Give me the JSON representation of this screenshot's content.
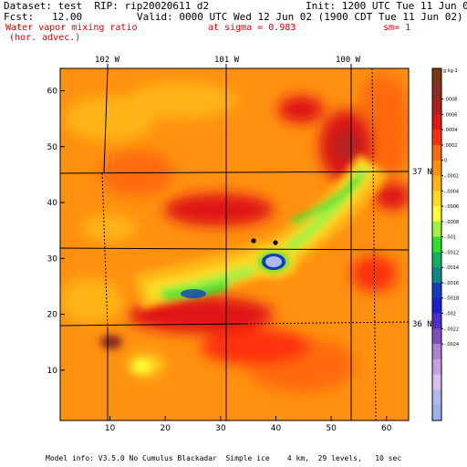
{
  "header": {
    "dataset": "Dataset: test  RIP: rip20020611 d2",
    "init": "Init: 1200 UTC Tue 11 Jun 02",
    "fcst": "Fcst:   12.00",
    "valid": "Valid: 0000 UTC Wed 12 Jun 02 (1900 CDT Tue 11 Jun 02)",
    "field_name": "Water vapor mixing ratio",
    "field_sub": "(hor. advec.)",
    "sigma": "at sigma = 0.983",
    "sm": "sm= 1"
  },
  "map": {
    "lon_labels": [
      "102 W",
      "101 W",
      "100 W"
    ],
    "lat_labels": [
      "37 N",
      "36 N"
    ],
    "x_ticks": [
      "10",
      "20",
      "30",
      "40",
      "50",
      "60"
    ],
    "y_ticks": [
      "10",
      "20",
      "30",
      "40",
      "50",
      "60"
    ],
    "x_range": [
      1,
      64
    ],
    "y_range": [
      1,
      64
    ],
    "markers": [
      [
        35.5,
        33.2
      ],
      [
        39.5,
        32.8
      ]
    ]
  },
  "colorbar": {
    "unit": "g kg-1",
    "labels": [
      ".0008",
      ".0006",
      ".0004",
      ".0002",
      "0",
      "-.0002",
      "-.0004",
      "-.0006",
      "-.0008",
      "-.001",
      "-.0012",
      "-.0014",
      "-.0016",
      "-.0018",
      "-.002",
      "-.0022",
      "-.0024"
    ],
    "colors": [
      "#7a3a10",
      "#8c2a20",
      "#b02020",
      "#e01818",
      "#ff3010",
      "#ff6a10",
      "#ff9010",
      "#ffb418",
      "#ffd820",
      "#ffff30",
      "#a0f040",
      "#30e030",
      "#10b060",
      "#108888",
      "#1040c0",
      "#2020d0",
      "#5030c8",
      "#8050c0",
      "#b080d0",
      "#c8a0e0",
      "#d8c0f0",
      "#b0b8f0",
      "#9cb0ee"
    ]
  },
  "footer": "Model info: V3.5.0 No Cumulus Blackadar  Simple ice    4 km,  29 levels,   10 sec"
}
